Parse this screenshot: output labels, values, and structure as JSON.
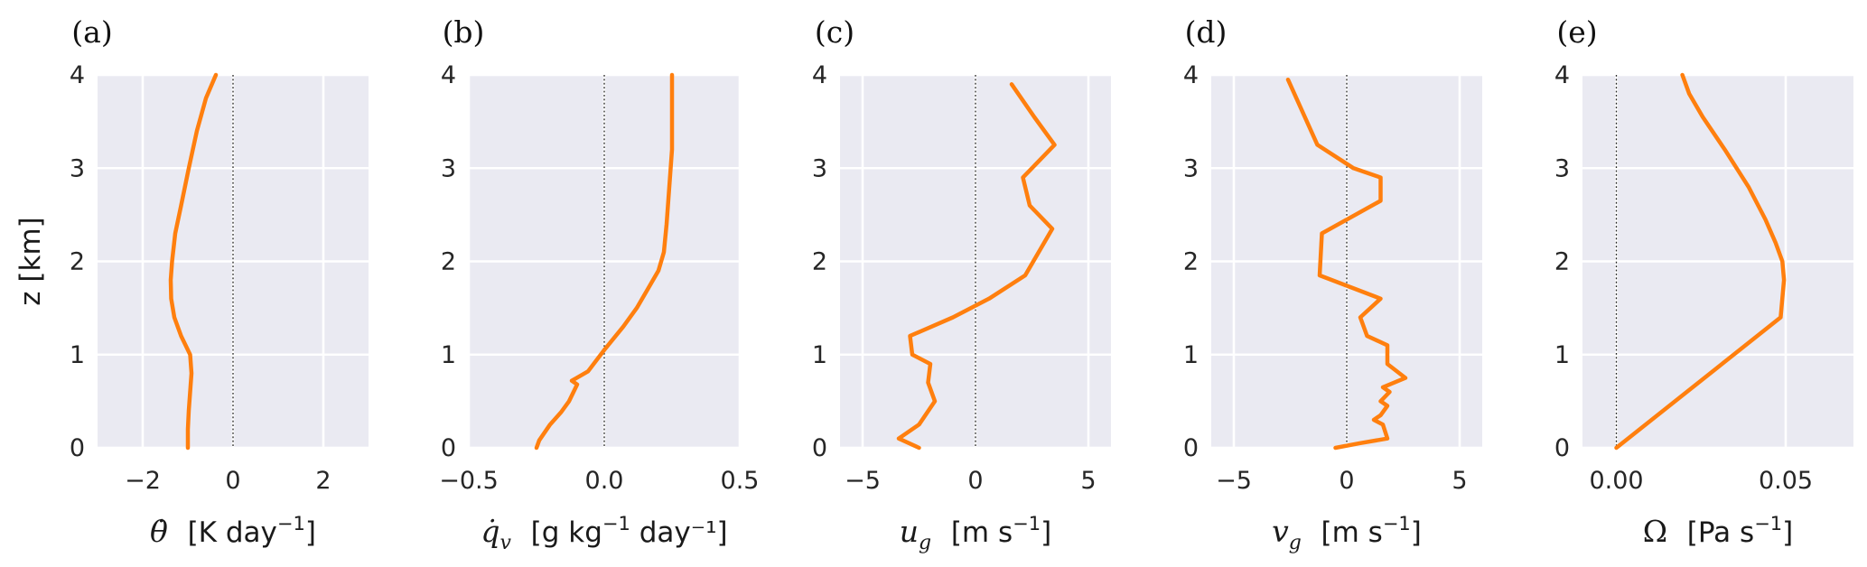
{
  "figure": {
    "ylabel": "z [km]",
    "series_color": "#ff7f0e",
    "panel_background": "#eaeaf2"
  },
  "chart_data": [
    {
      "type": "line",
      "panel_label": "(a)",
      "xlabel": {
        "symbol": "θ̇",
        "sub": "",
        "unit": "[K day",
        "sup": "−1",
        "unit_end": "]"
      },
      "xlim": [
        -3,
        3
      ],
      "ylim": [
        0,
        4
      ],
      "xticks": [
        -2,
        0,
        2
      ],
      "xtick_labels": [
        "−2",
        "0",
        "2"
      ],
      "yticks": [
        0,
        1,
        2,
        3,
        4
      ],
      "ytick_labels": [
        "0",
        "1",
        "2",
        "3",
        "4"
      ],
      "grid": true,
      "zero_line": true,
      "points": [
        [
          -1.0,
          0
        ],
        [
          -1.0,
          0.2
        ],
        [
          -0.98,
          0.4
        ],
        [
          -0.95,
          0.6
        ],
        [
          -0.92,
          0.8
        ],
        [
          -0.95,
          1.0
        ],
        [
          -1.15,
          1.2
        ],
        [
          -1.3,
          1.4
        ],
        [
          -1.37,
          1.6
        ],
        [
          -1.38,
          1.8
        ],
        [
          -1.35,
          2.0
        ],
        [
          -1.28,
          2.3
        ],
        [
          -1.15,
          2.6
        ],
        [
          -0.98,
          3.0
        ],
        [
          -0.8,
          3.4
        ],
        [
          -0.6,
          3.75
        ],
        [
          -0.38,
          4.0
        ]
      ]
    },
    {
      "type": "line",
      "panel_label": "(b)",
      "xlabel": {
        "symbol": "q̇",
        "sub": "v",
        "unit": "[g kg",
        "sup": "−1",
        "unit_end": " day⁻¹]"
      },
      "xlim": [
        -0.5,
        0.5
      ],
      "ylim": [
        0,
        4
      ],
      "xticks": [
        -0.5,
        0.0,
        0.5
      ],
      "xtick_labels": [
        "−0.5",
        "0.0",
        "0.5"
      ],
      "yticks": [
        0,
        1,
        2,
        3,
        4
      ],
      "ytick_labels": [
        "0",
        "1",
        "2",
        "3",
        "4"
      ],
      "grid": true,
      "zero_line": true,
      "points": [
        [
          -0.25,
          0.0
        ],
        [
          -0.24,
          0.08
        ],
        [
          -0.2,
          0.25
        ],
        [
          -0.16,
          0.38
        ],
        [
          -0.13,
          0.5
        ],
        [
          -0.1,
          0.68
        ],
        [
          -0.12,
          0.72
        ],
        [
          -0.06,
          0.82
        ],
        [
          0.0,
          1.05
        ],
        [
          0.07,
          1.3
        ],
        [
          0.12,
          1.5
        ],
        [
          0.16,
          1.7
        ],
        [
          0.2,
          1.9
        ],
        [
          0.22,
          2.1
        ],
        [
          0.23,
          2.4
        ],
        [
          0.24,
          2.8
        ],
        [
          0.25,
          3.2
        ],
        [
          0.25,
          3.6
        ],
        [
          0.25,
          4.0
        ]
      ]
    },
    {
      "type": "line",
      "panel_label": "(c)",
      "xlabel": {
        "symbol": "u",
        "sub": "g",
        "unit": "[m s",
        "sup": "−1",
        "unit_end": "]"
      },
      "xlim": [
        -6,
        6
      ],
      "ylim": [
        0,
        4
      ],
      "xticks": [
        -5,
        0,
        5
      ],
      "xtick_labels": [
        "−5",
        "0",
        "5"
      ],
      "yticks": [
        0,
        1,
        2,
        3,
        4
      ],
      "ytick_labels": [
        "0",
        "1",
        "2",
        "3",
        "4"
      ],
      "grid": true,
      "zero_line": true,
      "points": [
        [
          -2.5,
          0.0
        ],
        [
          -3.4,
          0.1
        ],
        [
          -2.5,
          0.25
        ],
        [
          -1.8,
          0.5
        ],
        [
          -2.1,
          0.7
        ],
        [
          -2.0,
          0.9
        ],
        [
          -2.8,
          1.0
        ],
        [
          -2.9,
          1.2
        ],
        [
          -1.0,
          1.4
        ],
        [
          0.6,
          1.6
        ],
        [
          2.2,
          1.85
        ],
        [
          3.4,
          2.35
        ],
        [
          2.4,
          2.6
        ],
        [
          2.1,
          2.9
        ],
        [
          3.5,
          3.25
        ],
        [
          2.6,
          3.55
        ],
        [
          1.6,
          3.9
        ]
      ]
    },
    {
      "type": "line",
      "panel_label": "(d)",
      "xlabel": {
        "symbol": "v",
        "sub": "g",
        "unit": "[m s",
        "sup": "−1",
        "unit_end": "]"
      },
      "xlim": [
        -6,
        6
      ],
      "ylim": [
        0,
        4
      ],
      "xticks": [
        -5,
        0,
        5
      ],
      "xtick_labels": [
        "−5",
        "0",
        "5"
      ],
      "yticks": [
        0,
        1,
        2,
        3,
        4
      ],
      "ytick_labels": [
        "0",
        "1",
        "2",
        "3",
        "4"
      ],
      "grid": true,
      "zero_line": true,
      "points": [
        [
          -0.5,
          0.0
        ],
        [
          0.6,
          0.05
        ],
        [
          1.8,
          0.1
        ],
        [
          1.6,
          0.25
        ],
        [
          1.2,
          0.3
        ],
        [
          1.5,
          0.35
        ],
        [
          1.8,
          0.45
        ],
        [
          1.5,
          0.5
        ],
        [
          1.9,
          0.6
        ],
        [
          1.6,
          0.65
        ],
        [
          2.6,
          0.75
        ],
        [
          1.8,
          0.9
        ],
        [
          1.8,
          1.1
        ],
        [
          0.9,
          1.2
        ],
        [
          0.6,
          1.4
        ],
        [
          1.5,
          1.6
        ],
        [
          -1.2,
          1.85
        ],
        [
          -1.1,
          2.3
        ],
        [
          1.5,
          2.65
        ],
        [
          1.5,
          2.9
        ],
        [
          0.3,
          3.0
        ],
        [
          -1.3,
          3.25
        ],
        [
          -2.6,
          3.95
        ]
      ]
    },
    {
      "type": "line",
      "panel_label": "(e)",
      "xlabel": {
        "symbol": "Ω",
        "sub": "",
        "unit": "[Pa s",
        "sup": "−1",
        "unit_end": "]"
      },
      "xlim": [
        -0.01,
        0.07
      ],
      "ylim": [
        0,
        4
      ],
      "xticks": [
        0.0,
        0.05
      ],
      "xtick_labels": [
        "0.00",
        "0.05"
      ],
      "yticks": [
        0,
        1,
        2,
        3,
        4
      ],
      "ytick_labels": [
        "0",
        "1",
        "2",
        "3",
        "4"
      ],
      "grid": true,
      "zero_line": true,
      "points": [
        [
          0.0,
          0.0
        ],
        [
          0.0485,
          1.4
        ],
        [
          0.0495,
          1.8
        ],
        [
          0.049,
          2.0
        ],
        [
          0.047,
          2.2
        ],
        [
          0.044,
          2.45
        ],
        [
          0.039,
          2.8
        ],
        [
          0.032,
          3.2
        ],
        [
          0.0255,
          3.55
        ],
        [
          0.0215,
          3.8
        ],
        [
          0.0195,
          4.0
        ]
      ]
    }
  ]
}
